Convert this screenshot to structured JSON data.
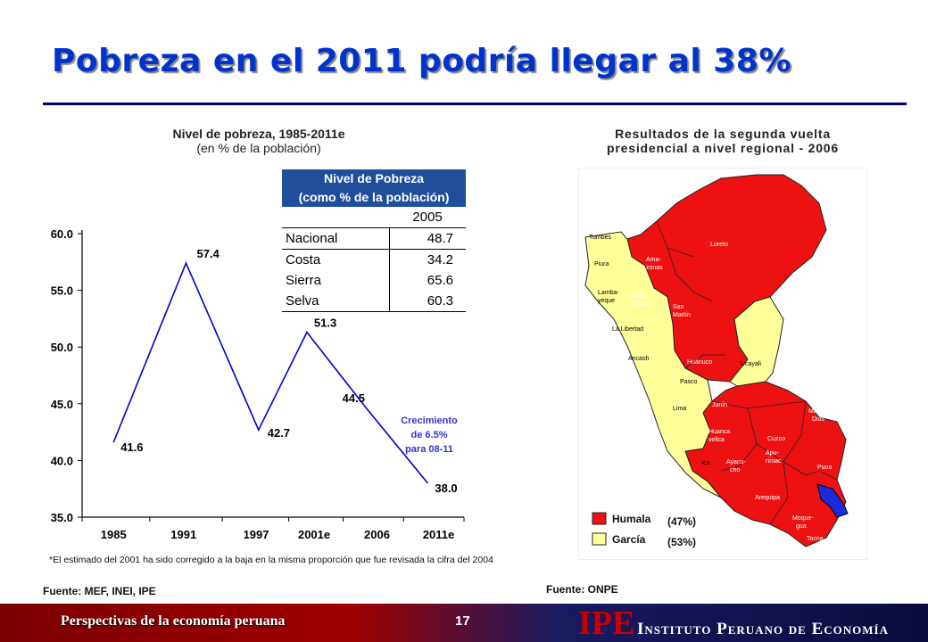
{
  "header": {
    "title": "Pobreza en el 2011 podría llegar al 38%"
  },
  "left_chart": {
    "title": "Nivel de pobreza, 1985-2011e",
    "subtitle": "(en % de la población)",
    "annotation": [
      "Crecimiento",
      "de 6.5%",
      "para 08-11"
    ],
    "note": "*El estimado del 2001 ha sido corregido a la baja en la misma proporción que fue revisada la cifra del 2004",
    "source": "Fuente: MEF, INEI, IPE"
  },
  "chart_data": {
    "type": "line",
    "title": "Nivel de pobreza, 1985-2011e",
    "subtitle": "(en % de la población)",
    "x": [
      "1985",
      "1991",
      "1997",
      "2001e",
      "2006",
      "2011e"
    ],
    "x_positions": [
      1985,
      1991,
      1997,
      2001,
      2006,
      2011
    ],
    "points": [
      {
        "x": 1985,
        "y": 41.6
      },
      {
        "x": 1991,
        "y": 57.4
      },
      {
        "x": 1997,
        "y": 42.7
      },
      {
        "x": 2001,
        "y": 51.3
      },
      {
        "x": 2006,
        "y": 44.5
      },
      {
        "x": 2011,
        "y": 38.0
      }
    ],
    "ylim": [
      35.0,
      60.0
    ],
    "yticks": [
      "35.0",
      "40.0",
      "45.0",
      "50.0",
      "55.0",
      "60.0"
    ],
    "line_color": "#0000cc"
  },
  "poverty_table": {
    "header": [
      "Nivel de Pobreza",
      "(como % de la población)"
    ],
    "year": "2005",
    "rows": [
      {
        "label": "Nacional",
        "value": "48.7"
      },
      {
        "label": "Costa",
        "value": "34.2"
      },
      {
        "label": "Sierra",
        "value": "65.6"
      },
      {
        "label": "Selva",
        "value": "60.3"
      }
    ]
  },
  "right_map": {
    "title_line1": "Resultados de la segunda vuelta",
    "title_line2": "presidencial a nivel regional - 2006",
    "legend": [
      {
        "label": "Humala",
        "pct": "(47%)",
        "color": "#ee1111"
      },
      {
        "label": "García",
        "pct": "(53%)",
        "color": "#ffff99"
      }
    ],
    "regions": {
      "tumbes": "Tumbes",
      "piura": "Piura",
      "lambayeque1": "Lamba-",
      "lambayeque2": "yeque",
      "cajamarca1": "Caja-",
      "cajamarca2": "marca",
      "amazonas1": "Ama-",
      "amazonas2": "zonas",
      "loreto": "Loreto",
      "sanmartin1": "San",
      "sanmartin2": "Martín",
      "lalibertad": "La Libertad",
      "ancash": "Ancash",
      "huanuco": "Huánuco",
      "ucayali": "Ucayali",
      "pasco": "Pasco",
      "lima": "Lima",
      "junin": "Junín",
      "madre1": "Madre de",
      "madre2": "Dios",
      "huanca1": "Huanca",
      "huanca2": "velica",
      "cuzco": "Cuzco",
      "ica": "Ica",
      "apu1": "Apu-",
      "apu2": "rímac",
      "ayacu1": "Ayacu-",
      "ayacu2": "cho",
      "puno": "Puno",
      "arequipa": "Arequipa",
      "moque1": "Moque-",
      "moque2": "gua",
      "tacna": "Tacna"
    },
    "source": "Fuente: ONPE"
  },
  "footer": {
    "left_text": "Perspectivas de la economía peruana",
    "page": "17",
    "logo": "IPE",
    "institute": "Instituto Peruano de Economía"
  }
}
